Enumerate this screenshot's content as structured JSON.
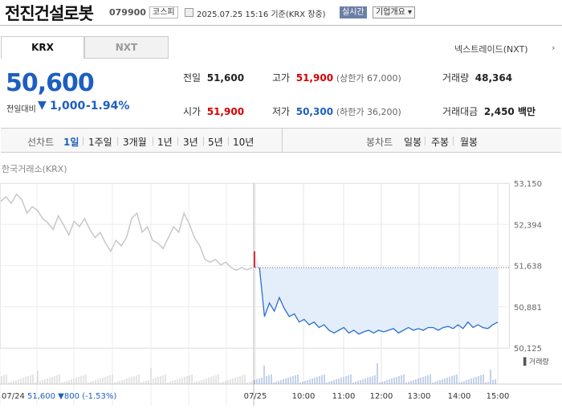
{
  "header": {
    "title": "전진건설로봇",
    "code": "079900",
    "market": "코스피",
    "datetime": "2025.07.25 15:16 기준(KRX 장중)",
    "realtime_btn": "실시간",
    "company_btn": "기업개요 ▾"
  },
  "tabs": [
    {
      "label": "KRX",
      "active": true
    },
    {
      "label": "NXT",
      "active": false
    }
  ],
  "nxt_link": "넥스트레이드(NXT)",
  "nxt_arrow": "›",
  "quote": {
    "price": "50,600",
    "diff_label": "전일대비",
    "diff_arrow": "▼",
    "diff_value": "1,000",
    "diff_pct": "-1.94%",
    "color_down": "#1d5fbf",
    "color_up": "#d60000"
  },
  "stats": {
    "prev_close": {
      "label": "전일",
      "value": "51,600"
    },
    "high": {
      "label": "고가",
      "value": "51,900",
      "sub": "(상한가 67,000)"
    },
    "volume": {
      "label": "거래량",
      "value": "48,364"
    },
    "open": {
      "label": "시가",
      "value": "51,900"
    },
    "low": {
      "label": "저가",
      "value": "50,300",
      "sub": "(하한가 36,200)"
    },
    "amount": {
      "label": "거래대금",
      "value": "2,450 백만"
    }
  },
  "range": {
    "line_label": "선차트",
    "line_items": [
      "1일",
      "1주일",
      "3개월",
      "1년",
      "3년",
      "5년",
      "10년"
    ],
    "active": "1일",
    "candle_label": "봉차트",
    "candle_items": [
      "일봉",
      "주봉",
      "월봉"
    ]
  },
  "exchange_label": "한국거래소(KRX)",
  "chart_data": {
    "type": "line",
    "y_ticks": [
      "53,150",
      "52,394",
      "51,638",
      "50,881",
      "50,125"
    ],
    "ylim": [
      50125,
      53150
    ],
    "reference_line": 51600,
    "x_ticks": [
      "07/25",
      "10:00",
      "11:00",
      "12:00",
      "13:00",
      "14:00",
      "15:00"
    ],
    "volume_label": "거래량",
    "prev_day_footer": {
      "date": "07/24",
      "price": "51,600",
      "change": "▼800",
      "pct": "(-1.53%)"
    },
    "series": [
      {
        "values": [
          52820,
          52900,
          52780,
          52950,
          52850,
          52600,
          52720,
          52650,
          52500,
          52420,
          52300,
          52550,
          52380,
          52200,
          52450,
          52350,
          52500,
          52300,
          52150,
          52250,
          52050,
          51900,
          52100,
          52000,
          52150,
          52500,
          52600,
          52250,
          52350,
          52100,
          52050,
          51950,
          52150,
          52350,
          52250,
          52600,
          52400,
          52150,
          52000,
          51750,
          51700,
          51750,
          51650,
          51700,
          51600,
          51550,
          51600,
          51560,
          51600
        ]
      },
      {
        "values": [
          51900,
          51600,
          50700,
          50950,
          50800,
          51050,
          50850,
          50700,
          50750,
          50600,
          50650,
          50550,
          50600,
          50500,
          50550,
          50450,
          50400,
          50450,
          50500,
          50400,
          50450,
          50380,
          50420,
          50450,
          50400,
          50450,
          50420,
          50450,
          50480,
          50400,
          50450,
          50500,
          50450,
          50480,
          50450,
          50500,
          50500,
          50450,
          50500,
          50520,
          50480,
          50550,
          50480,
          50600,
          50500,
          50550,
          50500,
          50480,
          50550,
          50600
        ]
      }
    ]
  }
}
